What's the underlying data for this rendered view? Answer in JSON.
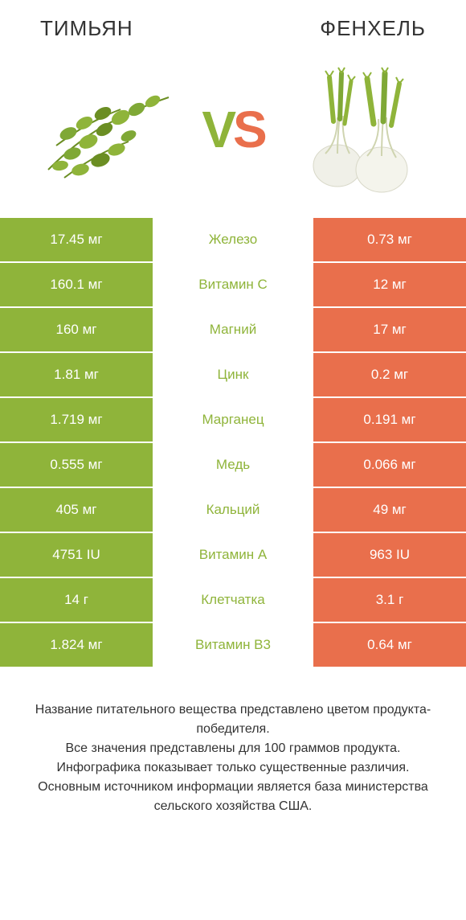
{
  "colors": {
    "left": "#8fb43a",
    "right": "#e96f4c",
    "mid_bg": "#ffffff",
    "text": "#333333"
  },
  "header": {
    "left_title": "ТИМЬЯН",
    "right_title": "ФЕНХЕЛЬ"
  },
  "vs": {
    "v": "V",
    "s": "S"
  },
  "rows": [
    {
      "left": "17.45 мг",
      "mid": "Железо",
      "right": "0.73 мг",
      "mid_color": "#8fb43a"
    },
    {
      "left": "160.1 мг",
      "mid": "Витамин C",
      "right": "12 мг",
      "mid_color": "#8fb43a"
    },
    {
      "left": "160 мг",
      "mid": "Магний",
      "right": "17 мг",
      "mid_color": "#8fb43a"
    },
    {
      "left": "1.81 мг",
      "mid": "Цинк",
      "right": "0.2 мг",
      "mid_color": "#8fb43a"
    },
    {
      "left": "1.719 мг",
      "mid": "Марганец",
      "right": "0.191 мг",
      "mid_color": "#8fb43a"
    },
    {
      "left": "0.555 мг",
      "mid": "Медь",
      "right": "0.066 мг",
      "mid_color": "#8fb43a"
    },
    {
      "left": "405 мг",
      "mid": "Кальций",
      "right": "49 мг",
      "mid_color": "#8fb43a"
    },
    {
      "left": "4751 IU",
      "mid": "Витамин A",
      "right": "963 IU",
      "mid_color": "#8fb43a"
    },
    {
      "left": "14 г",
      "mid": "Клетчатка",
      "right": "3.1 г",
      "mid_color": "#8fb43a"
    },
    {
      "left": "1.824 мг",
      "mid": "Витамин B3",
      "right": "0.64 мг",
      "mid_color": "#8fb43a"
    }
  ],
  "footer": {
    "line1": "Название питательного вещества представлено цветом продукта-победителя.",
    "line2": "Все значения представлены для 100 граммов продукта.",
    "line3": "Инфографика показывает только существенные различия.",
    "line4": "Основным источником информации является база министерства сельского хозяйства США."
  }
}
